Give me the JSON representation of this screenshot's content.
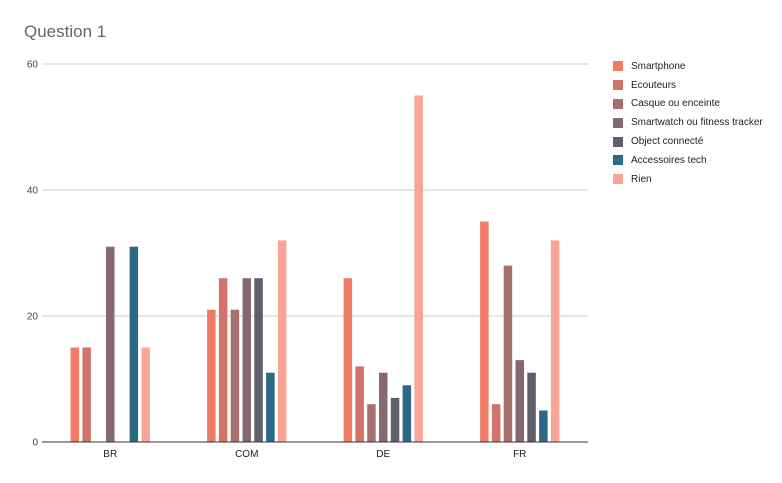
{
  "chart_data": {
    "type": "bar",
    "title": "Question 1",
    "xlabel": "",
    "ylabel": "",
    "categories": [
      "BR",
      "COM",
      "DE",
      "FR"
    ],
    "ylim": [
      0,
      60
    ],
    "yticks": [
      0,
      20,
      40,
      60
    ],
    "grid": true,
    "legend_position": "right",
    "series": [
      {
        "name": "Smartphone",
        "color": "#f07b66",
        "values": [
          15,
          21,
          26,
          35
        ]
      },
      {
        "name": "Ecouteurs",
        "color": "#d2736a",
        "values": [
          15,
          26,
          12,
          6
        ]
      },
      {
        "name": "Casque ou enceinte",
        "color": "#a7716f",
        "values": [
          0,
          21,
          6,
          28
        ]
      },
      {
        "name": "Smartwatch ou fitness tracker",
        "color": "#85696f",
        "values": [
          31,
          26,
          11,
          13
        ]
      },
      {
        "name": "Object connecté",
        "color": "#5f5f6b",
        "values": [
          0,
          26,
          7,
          11
        ]
      },
      {
        "name": "Accessoires tech",
        "color": "#2d6987",
        "values": [
          31,
          11,
          9,
          5
        ]
      },
      {
        "name": "Rien",
        "color": "#f8a595",
        "values": [
          15,
          32,
          55,
          32
        ]
      }
    ]
  }
}
